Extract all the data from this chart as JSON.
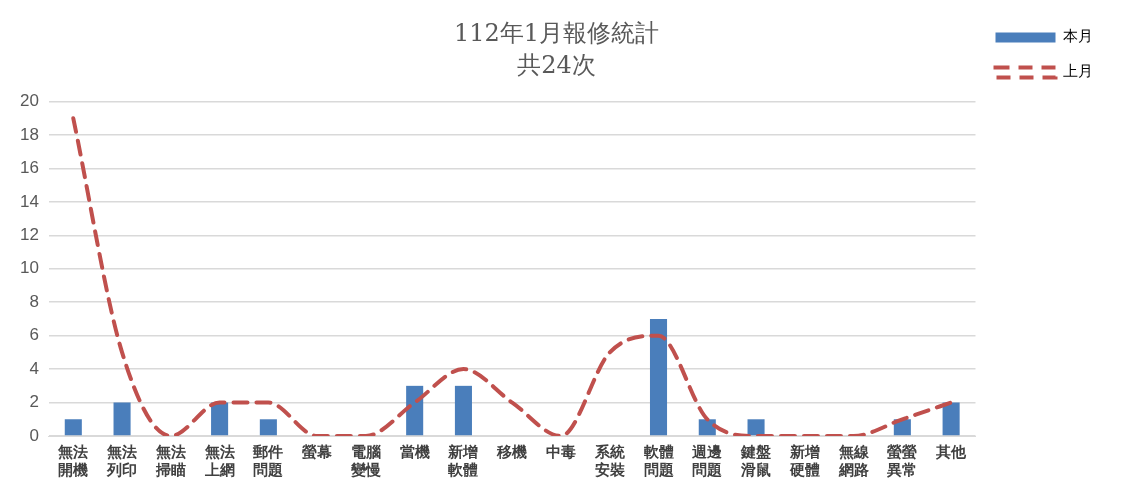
{
  "chart_data": {
    "type": "bar",
    "title": "112年1月報修統計",
    "subtitle": "共24次",
    "categories": [
      "無法開機",
      "無法列印",
      "無法掃瞄",
      "無法上網",
      "郵件問題",
      "螢幕",
      "電腦變慢",
      "當機",
      "新增軟體",
      "移機",
      "中毒",
      "系統安裝",
      "軟體問題",
      "週邊問題",
      "鍵盤滑鼠",
      "新增硬體",
      "無線網路",
      "螢螢異常",
      "其他"
    ],
    "series": [
      {
        "name": "本月",
        "color": "#4a7ebb",
        "values": [
          1,
          2,
          0,
          2,
          1,
          0,
          0,
          3,
          3,
          0,
          0,
          0,
          7,
          1,
          1,
          0,
          0,
          1,
          2
        ]
      },
      {
        "name": "上月",
        "type": "line",
        "color": "#c0504d",
        "line_style": "dashed",
        "marker": "none",
        "values": [
          19,
          5,
          0,
          2,
          2,
          0,
          0,
          2,
          4,
          2,
          0,
          5,
          6,
          1,
          0,
          0,
          0,
          1,
          2
        ]
      }
    ],
    "ylim": [
      0,
      20
    ],
    "yticks": [
      0,
      2,
      4,
      6,
      8,
      10,
      12,
      14,
      16,
      18,
      20
    ],
    "grid": "y",
    "legend": "top right"
  }
}
